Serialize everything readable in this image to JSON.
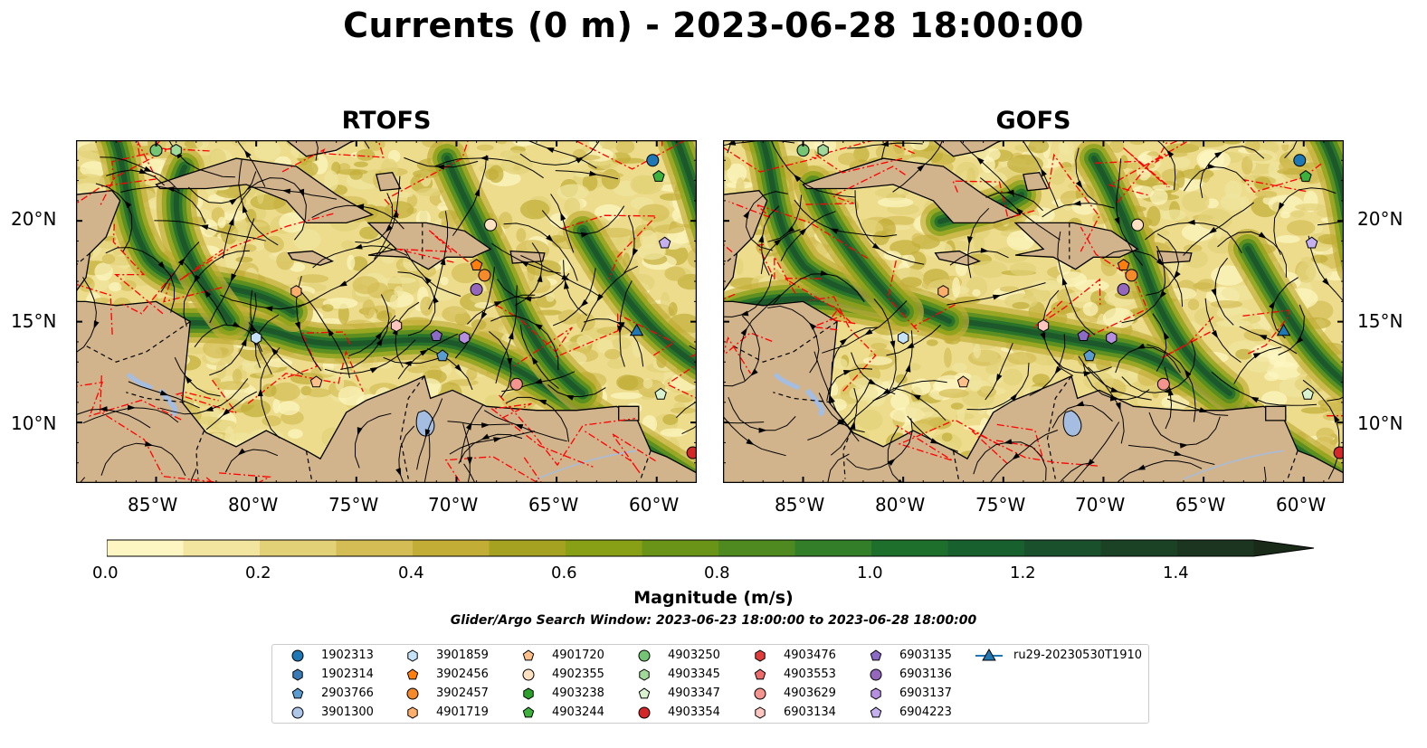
{
  "title": "Currents (0 m) - 2023-06-28 18:00:00",
  "panels": [
    {
      "title": "RTOFS"
    },
    {
      "title": "GOFS"
    }
  ],
  "x_ticks": [
    "85°W",
    "80°W",
    "75°W",
    "70°W",
    "65°W",
    "60°W"
  ],
  "y_ticks": [
    "20°N",
    "15°N",
    "10°N"
  ],
  "colorbar": {
    "label": "Magnitude (m/s)",
    "ticks": [
      "0.0",
      "0.2",
      "0.4",
      "0.6",
      "0.8",
      "1.0",
      "1.2",
      "1.4"
    ],
    "colors": [
      "#fdf6c2",
      "#f1e5a0",
      "#e3d177",
      "#d4bd55",
      "#c2ae37",
      "#a5a222",
      "#87a016",
      "#6a9418",
      "#4e8a20",
      "#337e29",
      "#1f6f2c",
      "#19602f",
      "#1a512c",
      "#1c4226",
      "#1c3520",
      "#1a2a19"
    ]
  },
  "search_window": "Glider/Argo Search Window: 2023-06-23 18:00:00 to 2023-06-28 18:00:00",
  "legend": [
    {
      "label": "1902313",
      "marker": "circle",
      "color": "#1f77b4"
    },
    {
      "label": "1902314",
      "marker": "hexagon",
      "color": "#3a7bb5"
    },
    {
      "label": "2903766",
      "marker": "pentagon",
      "color": "#5a9bd0"
    },
    {
      "label": "3901300",
      "marker": "circle",
      "color": "#aec7e8"
    },
    {
      "label": "3901859",
      "marker": "hexagon",
      "color": "#c6e2f7"
    },
    {
      "label": "3902456",
      "marker": "pentagon",
      "color": "#ff7f0e"
    },
    {
      "label": "3902457",
      "marker": "circle",
      "color": "#f58a2a"
    },
    {
      "label": "4901719",
      "marker": "hexagon",
      "color": "#fdae6b"
    },
    {
      "label": "4901720",
      "marker": "pentagon",
      "color": "#fdc08a"
    },
    {
      "label": "4902355",
      "marker": "circle",
      "color": "#fee0c2"
    },
    {
      "label": "4903238",
      "marker": "hexagon",
      "color": "#2ca02c"
    },
    {
      "label": "4903244",
      "marker": "pentagon",
      "color": "#3cb13c"
    },
    {
      "label": "4903250",
      "marker": "circle",
      "color": "#74c476"
    },
    {
      "label": "4903345",
      "marker": "hexagon",
      "color": "#a1d99b"
    },
    {
      "label": "4903347",
      "marker": "pentagon",
      "color": "#d9f3d0"
    },
    {
      "label": "4903354",
      "marker": "circle",
      "color": "#d62728"
    },
    {
      "label": "4903476",
      "marker": "hexagon",
      "color": "#e03c3c"
    },
    {
      "label": "4903553",
      "marker": "pentagon",
      "color": "#ee6b6b"
    },
    {
      "label": "4903629",
      "marker": "circle",
      "color": "#f4948e"
    },
    {
      "label": "6903134",
      "marker": "hexagon",
      "color": "#fcc5c0"
    },
    {
      "label": "6903135",
      "marker": "pentagon",
      "color": "#8c6bc6"
    },
    {
      "label": "6903136",
      "marker": "circle",
      "color": "#9467bd"
    },
    {
      "label": "6903137",
      "marker": "hexagon",
      "color": "#b68fe0"
    },
    {
      "label": "6904223",
      "marker": "pentagon",
      "color": "#c5b0f0"
    },
    {
      "label": "ru29-20230530T1910",
      "marker": "triangle-line",
      "color": "#1f77b4"
    }
  ],
  "colors": {
    "land": "#d2b48c",
    "coast": "#000000",
    "eez": "#ff0000",
    "lake": "#a4bde0"
  },
  "chart_data": {
    "type": "heatmap",
    "title": "Currents (0 m) - 2023-06-28 18:00:00",
    "panels": [
      "RTOFS",
      "GOFS"
    ],
    "x_range_lon": [
      -89,
      -58
    ],
    "y_range_lat": [
      7,
      24
    ],
    "x_ticks_lon": [
      -85,
      -80,
      -75,
      -70,
      -65,
      -60
    ],
    "y_ticks_lat": [
      20,
      15,
      10
    ],
    "colorbar_range": [
      0.0,
      1.5
    ],
    "colorbar_label": "Magnitude (m/s)",
    "colorbar_ticks": [
      0.0,
      0.2,
      0.4,
      0.6,
      0.8,
      1.0,
      1.2,
      1.4
    ],
    "floats": [
      {
        "id": "1902313",
        "rtofs": [
          -60.2,
          23.0
        ],
        "gofs": [
          -60.2,
          23.0
        ]
      },
      {
        "id": "4903244",
        "rtofs": [
          -59.9,
          22.2
        ],
        "gofs": [
          -59.9,
          22.2
        ]
      },
      {
        "id": "4903250",
        "rtofs": [
          -85.0,
          23.5
        ],
        "gofs": [
          -85.0,
          23.5
        ]
      },
      {
        "id": "4903345",
        "rtofs": [
          -84.0,
          23.5
        ],
        "gofs": [
          -84.0,
          23.5
        ]
      },
      {
        "id": "4902355",
        "rtofs": [
          -68.3,
          19.8
        ],
        "gofs": [
          -68.3,
          19.8
        ]
      },
      {
        "id": "6904223",
        "rtofs": [
          -59.6,
          18.9
        ],
        "gofs": [
          -59.6,
          18.9
        ]
      },
      {
        "id": "3902456",
        "rtofs": [
          -69.0,
          17.8
        ],
        "gofs": [
          -69.0,
          17.8
        ]
      },
      {
        "id": "3902457",
        "rtofs": [
          -68.6,
          17.3
        ],
        "gofs": [
          -68.6,
          17.3
        ]
      },
      {
        "id": "4901719",
        "rtofs": [
          -78.0,
          16.5
        ],
        "gofs": [
          -78.0,
          16.5
        ]
      },
      {
        "id": "6903136",
        "rtofs": [
          -69.0,
          16.6
        ],
        "gofs": [
          -69.0,
          16.6
        ]
      },
      {
        "id": "6903134",
        "rtofs": [
          -73.0,
          14.8
        ],
        "gofs": [
          -73.0,
          14.8
        ]
      },
      {
        "id": "3901859",
        "rtofs": [
          -80.0,
          14.2
        ],
        "gofs": [
          -80.0,
          14.2
        ]
      },
      {
        "id": "6903135",
        "rtofs": [
          -71.0,
          14.3
        ],
        "gofs": [
          -71.0,
          14.3
        ]
      },
      {
        "id": "6903137",
        "rtofs": [
          -69.6,
          14.2
        ],
        "gofs": [
          -69.6,
          14.2
        ]
      },
      {
        "id": "2903766",
        "rtofs": [
          -70.7,
          13.3
        ],
        "gofs": [
          -70.7,
          13.3
        ]
      },
      {
        "id": "4901720",
        "rtofs": [
          -77.0,
          12.0
        ],
        "gofs": [
          -77.0,
          12.0
        ]
      },
      {
        "id": "4903629",
        "rtofs": [
          -67.0,
          11.9
        ],
        "gofs": [
          -67.0,
          11.9
        ]
      },
      {
        "id": "4903347",
        "rtofs": [
          -59.8,
          11.4
        ],
        "gofs": [
          -59.8,
          11.4
        ]
      },
      {
        "id": "4903354",
        "rtofs": [
          -58.2,
          8.5
        ],
        "gofs": [
          -58.2,
          8.5
        ]
      },
      {
        "id": "ru29-20230530T1910",
        "rtofs": [
          -61.0,
          14.5
        ],
        "gofs": [
          -61.0,
          14.5
        ]
      }
    ]
  }
}
